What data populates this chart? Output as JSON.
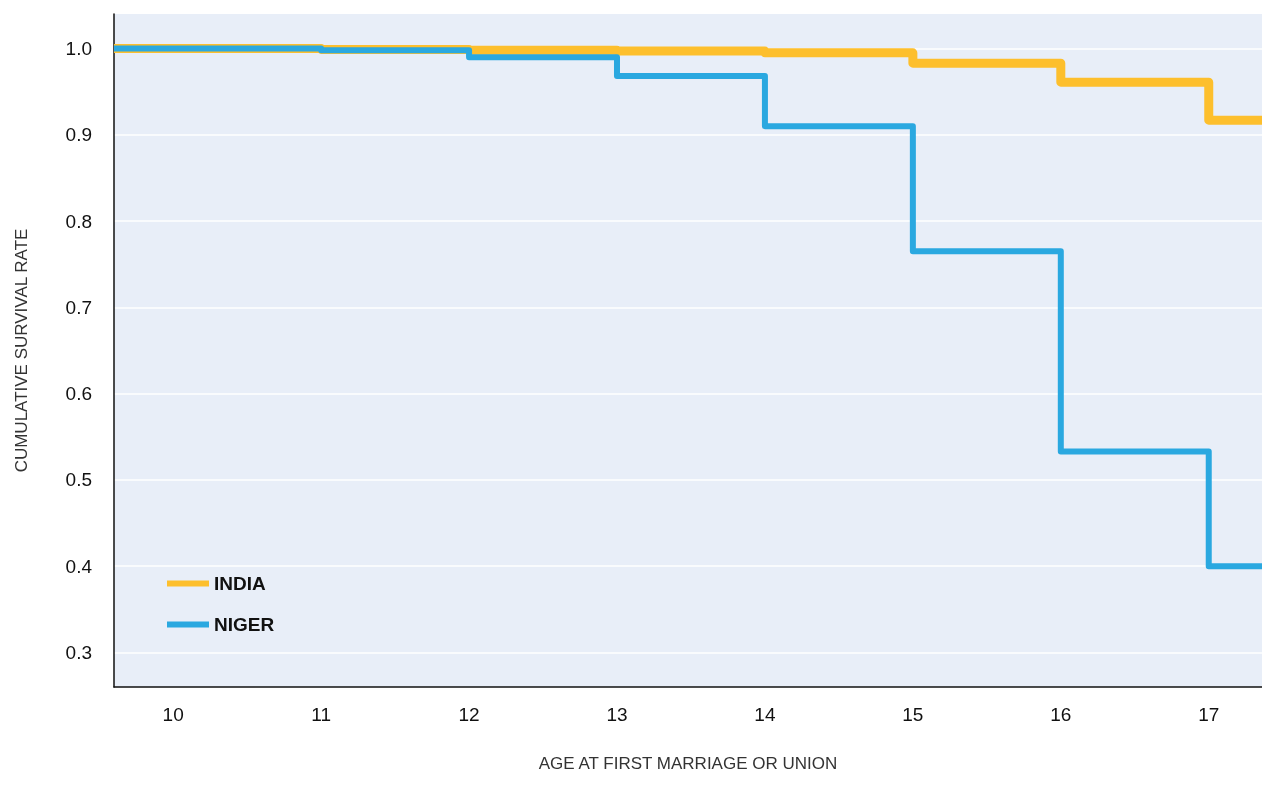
{
  "chart_data": {
    "type": "step",
    "xlabel": "AGE AT FIRST MARRIAGE OR UNION",
    "ylabel": "CUMULATIVE SURVIVAL RATE",
    "x": [
      9.6,
      11,
      12,
      13,
      14,
      15,
      16,
      17,
      17.36
    ],
    "series": [
      {
        "name": "INDIA",
        "color": "#fdbf2d",
        "values": [
          1.0,
          0.999,
          0.998,
          0.997,
          0.995,
          0.983,
          0.961,
          0.917,
          0.917
        ]
      },
      {
        "name": "NIGER",
        "color": "#2aa8e0",
        "values": [
          1.0,
          0.998,
          0.99,
          0.968,
          0.91,
          0.765,
          0.533,
          0.4,
          0.4
        ]
      }
    ],
    "xlim": [
      9.6,
      17.36
    ],
    "xticks": [
      10,
      11,
      12,
      13,
      14,
      15,
      16,
      17
    ],
    "ylim": [
      0.26,
      1.04
    ],
    "yticks": [
      0.3,
      0.4,
      0.5,
      0.6,
      0.7,
      0.8,
      0.9,
      {
        "value": 1,
        "label": "1.0"
      }
    ],
    "grid": "y",
    "legend": "bottom left",
    "line_style": "solid",
    "marker": "none"
  }
}
